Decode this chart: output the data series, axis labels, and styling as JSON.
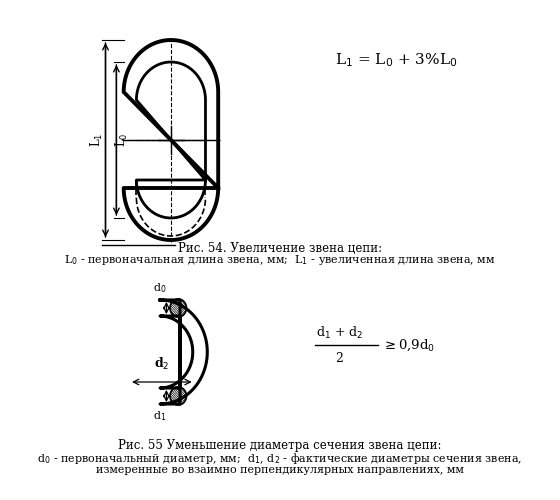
{
  "background_color": "#ffffff",
  "fig_width": 5.6,
  "fig_height": 5.0,
  "dpi": 100,
  "caption1_line1": "Рис. 54. Увеличение звена цепи:",
  "caption1_line2": "L$_0$ - первоначальная длина звена, мм;  L$_1$ - увеличенная длина звена, мм",
  "caption2_line1": "Рис. 55 Уменьшение диаметра сечения звена цепи:",
  "caption2_line2": "d$_0$ - первоначальный диаметр, мм;  d$_1$, d$_2$ - фактические диаметры сечения звена,",
  "caption2_line3": "измеренные во взаимно перпендикулярных направлениях, мм"
}
